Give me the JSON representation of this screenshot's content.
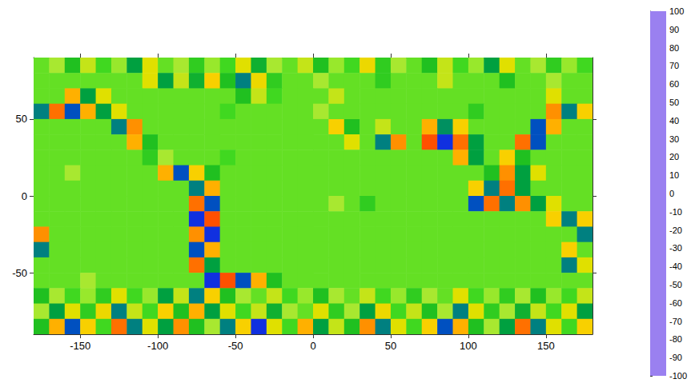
{
  "chart_data": {
    "type": "heatmap",
    "x": [
      -175,
      -165,
      -155,
      -145,
      -135,
      -125,
      -115,
      -105,
      -95,
      -85,
      -75,
      -65,
      -55,
      -45,
      -35,
      -25,
      -15,
      -5,
      5,
      15,
      25,
      35,
      45,
      55,
      65,
      75,
      85,
      95,
      105,
      115,
      125,
      135,
      145,
      155,
      165,
      175
    ],
    "y": [
      85,
      75,
      65,
      55,
      45,
      35,
      25,
      15,
      5,
      -5,
      -15,
      -25,
      -35,
      -45,
      -55,
      -65,
      -75,
      -85
    ],
    "values": [
      [
        -5,
        10,
        -20,
        15,
        -10,
        5,
        -30,
        20,
        -5,
        10,
        -15,
        5,
        -10,
        20,
        -25,
        10,
        -5,
        15,
        -20,
        5,
        -10,
        25,
        -15,
        10,
        -5,
        -20,
        15,
        -10,
        5,
        -30,
        20,
        -5,
        10,
        -15,
        5,
        -10
      ],
      [
        -5,
        -5,
        -5,
        -5,
        -5,
        -5,
        -5,
        20,
        -30,
        15,
        -25,
        30,
        -20,
        -40,
        25,
        -15,
        -5,
        -5,
        10,
        -5,
        -5,
        -5,
        -15,
        -5,
        -5,
        -5,
        15,
        -5,
        -5,
        -5,
        -20,
        -5,
        -5,
        10,
        -5,
        -5
      ],
      [
        -5,
        -5,
        40,
        -30,
        20,
        -5,
        -5,
        -5,
        -5,
        -5,
        -5,
        -5,
        -5,
        -20,
        15,
        -10,
        -5,
        -5,
        -5,
        15,
        -5,
        -5,
        -5,
        -5,
        -5,
        -5,
        -5,
        -5,
        -5,
        -5,
        -5,
        -5,
        -5,
        20,
        -5,
        -5
      ],
      [
        -40,
        60,
        -50,
        40,
        -30,
        20,
        -5,
        -5,
        -5,
        -5,
        -5,
        -5,
        -10,
        -5,
        -5,
        -5,
        -5,
        -5,
        10,
        -5,
        -5,
        -5,
        -5,
        -5,
        -5,
        -5,
        -5,
        -5,
        -15,
        -5,
        -5,
        -5,
        -5,
        50,
        -40,
        30
      ],
      [
        -5,
        -5,
        -5,
        -5,
        -5,
        -40,
        50,
        -5,
        -5,
        -5,
        -5,
        -5,
        -5,
        -5,
        -5,
        -5,
        -5,
        -5,
        -5,
        30,
        -20,
        -5,
        15,
        -5,
        -5,
        40,
        -35,
        30,
        -5,
        -5,
        -5,
        -5,
        -50,
        40,
        -5,
        -5
      ],
      [
        -5,
        -5,
        -5,
        -5,
        -5,
        -5,
        40,
        -20,
        -5,
        -5,
        -5,
        -5,
        -5,
        -5,
        -5,
        -5,
        -5,
        -5,
        -5,
        -5,
        20,
        -5,
        -40,
        50,
        -5,
        70,
        -60,
        60,
        -30,
        -5,
        -5,
        60,
        -50,
        -5,
        -5,
        -5
      ],
      [
        -5,
        -5,
        -5,
        -5,
        -5,
        -5,
        -5,
        -15,
        10,
        -5,
        -5,
        -5,
        -10,
        -5,
        -5,
        -5,
        -5,
        -5,
        -5,
        -5,
        -5,
        -5,
        -5,
        -5,
        -5,
        -5,
        -5,
        40,
        -30,
        -5,
        30,
        -20,
        -5,
        -5,
        -5,
        -5
      ],
      [
        -5,
        -5,
        10,
        -5,
        -5,
        -5,
        -5,
        -5,
        40,
        -50,
        30,
        -20,
        -5,
        -5,
        -5,
        -5,
        -5,
        -5,
        -5,
        -5,
        -5,
        -5,
        -5,
        -5,
        -5,
        -5,
        -5,
        -5,
        -5,
        -20,
        50,
        -30,
        20,
        -5,
        -5,
        -5
      ],
      [
        -5,
        -5,
        -5,
        -5,
        -5,
        -5,
        -5,
        -5,
        -5,
        -5,
        -40,
        40,
        -5,
        -5,
        -5,
        -5,
        -5,
        -5,
        -5,
        -5,
        -5,
        -5,
        -5,
        -5,
        -5,
        -5,
        -5,
        -5,
        30,
        -40,
        60,
        -30,
        -5,
        -5,
        -5,
        -5
      ],
      [
        -5,
        -5,
        -5,
        -5,
        -5,
        -5,
        -5,
        -5,
        -5,
        -5,
        60,
        -50,
        -5,
        -5,
        -5,
        -5,
        -5,
        -5,
        -5,
        10,
        -5,
        -15,
        -5,
        -5,
        -5,
        -5,
        -5,
        -5,
        -50,
        60,
        -40,
        50,
        -30,
        20,
        -5,
        -5
      ],
      [
        -5,
        -5,
        -5,
        -5,
        -5,
        -5,
        -5,
        -5,
        -5,
        -5,
        -60,
        70,
        -5,
        -5,
        -5,
        -5,
        -5,
        -5,
        -5,
        -5,
        -5,
        -5,
        -5,
        -5,
        -5,
        -5,
        -5,
        -5,
        -5,
        -5,
        -5,
        -5,
        -5,
        30,
        -40,
        30
      ],
      [
        50,
        -5,
        -5,
        -5,
        -5,
        -5,
        -5,
        -5,
        -5,
        -5,
        50,
        -60,
        -5,
        -5,
        -5,
        -5,
        -5,
        -5,
        -5,
        -5,
        -5,
        -5,
        -5,
        -5,
        -5,
        -5,
        -5,
        -5,
        -5,
        -5,
        -5,
        -5,
        -5,
        -5,
        -5,
        -40
      ],
      [
        -40,
        -5,
        -5,
        -5,
        -5,
        -5,
        -5,
        -5,
        -5,
        -5,
        -50,
        40,
        -5,
        -5,
        -5,
        -5,
        -5,
        -5,
        -5,
        -5,
        -5,
        -5,
        -5,
        -5,
        -5,
        -5,
        -5,
        -5,
        -5,
        -5,
        -5,
        -5,
        -5,
        -5,
        30,
        -5
      ],
      [
        -5,
        -5,
        -5,
        -5,
        -5,
        -5,
        -5,
        -5,
        -5,
        -5,
        60,
        -30,
        -5,
        -5,
        -5,
        -5,
        -5,
        -5,
        -5,
        -5,
        -5,
        -5,
        -5,
        -5,
        -5,
        -5,
        -5,
        -5,
        -5,
        -5,
        -5,
        -5,
        -5,
        -5,
        -40,
        20
      ],
      [
        -5,
        -5,
        -5,
        10,
        -5,
        -5,
        -5,
        -5,
        -5,
        -5,
        -5,
        -60,
        70,
        -50,
        40,
        -20,
        -5,
        -5,
        -5,
        -5,
        -5,
        -5,
        -5,
        -5,
        -5,
        -5,
        -5,
        -5,
        -5,
        -5,
        -5,
        -5,
        -5,
        -5,
        -5,
        -5
      ],
      [
        -20,
        10,
        -10,
        5,
        -15,
        20,
        -10,
        5,
        -30,
        15,
        -40,
        30,
        -20,
        10,
        -5,
        15,
        -10,
        5,
        -20,
        10,
        -5,
        15,
        -10,
        5,
        -15,
        10,
        -5,
        20,
        -10,
        5,
        -15,
        10,
        -20,
        5,
        -10,
        15
      ],
      [
        10,
        -30,
        20,
        -15,
        25,
        -40,
        15,
        -10,
        30,
        -20,
        40,
        -30,
        20,
        -10,
        15,
        -25,
        10,
        -5,
        20,
        -15,
        10,
        -30,
        25,
        -10,
        15,
        -20,
        10,
        -40,
        20,
        -15,
        10,
        -25,
        15,
        -10,
        20,
        -30
      ],
      [
        -20,
        40,
        -50,
        30,
        -10,
        60,
        -40,
        20,
        -30,
        50,
        -20,
        10,
        -40,
        30,
        -60,
        20,
        -10,
        40,
        -30,
        15,
        -20,
        50,
        -40,
        20,
        -10,
        30,
        -50,
        40,
        -20,
        10,
        -30,
        60,
        -40,
        20,
        -10,
        30
      ]
    ],
    "xlim": [
      -180,
      180
    ],
    "ylim": [
      -90,
      90
    ],
    "xticks": [
      -150,
      -100,
      -50,
      0,
      50,
      100,
      150
    ],
    "yticks": [
      -50,
      0,
      50
    ],
    "colorbar": {
      "range": [
        -100,
        100
      ],
      "ticks": [
        -100,
        -90,
        -80,
        -70,
        -60,
        -50,
        -40,
        -30,
        -20,
        -10,
        0,
        10,
        20,
        30,
        40,
        50,
        60,
        70,
        80,
        90,
        100
      ]
    }
  }
}
